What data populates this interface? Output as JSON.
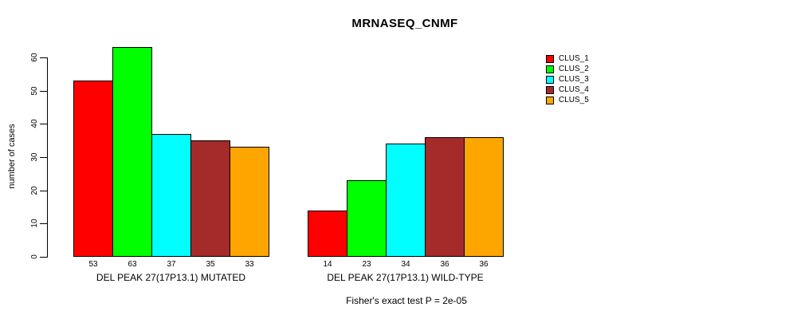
{
  "chart": {
    "title": "MRNASEQ_CNMF",
    "ylabel": "number of cases",
    "caption": "Fisher's exact test P = 2e-05"
  },
  "chart_data": {
    "type": "bar",
    "title": "MRNASEQ_CNMF",
    "xlabel": "",
    "ylabel": "number of cases",
    "ylim": [
      0,
      63
    ],
    "yticks": [
      0,
      10,
      20,
      30,
      40,
      50,
      60
    ],
    "grid": false,
    "legend_position": "right-top",
    "legend_entries": [
      "CLUS_1",
      "CLUS_2",
      "CLUS_3",
      "CLUS_4",
      "CLUS_5"
    ],
    "categories": [
      "DEL PEAK 27(17P13.1) MUTATED",
      "DEL PEAK 27(17P13.1) WILD-TYPE"
    ],
    "series": [
      {
        "name": "CLUS_1",
        "color": "#FF0000",
        "values": [
          53,
          14
        ]
      },
      {
        "name": "CLUS_2",
        "color": "#00FF00",
        "values": [
          63,
          23
        ]
      },
      {
        "name": "CLUS_3",
        "color": "#00FFFF",
        "values": [
          37,
          34
        ]
      },
      {
        "name": "CLUS_4",
        "color": "#A52A2A",
        "values": [
          35,
          36
        ]
      },
      {
        "name": "CLUS_5",
        "color": "#FFA500",
        "values": [
          33,
          36
        ]
      }
    ],
    "bar_value_labels": [
      [
        53,
        63,
        37,
        35,
        33
      ],
      [
        14,
        23,
        34,
        36,
        36
      ]
    ],
    "annotation": "Fisher's exact test P = 2e-05"
  }
}
